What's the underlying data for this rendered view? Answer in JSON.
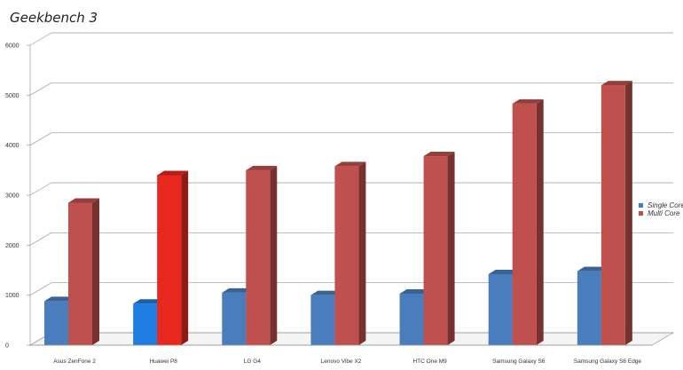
{
  "chart_data": {
    "type": "bar",
    "title": "Geekbench 3",
    "categories": [
      "Asus ZenFone 2",
      "Huawei P8",
      "LG G4",
      "Lenovo Vibe X2",
      "HTC One M9",
      "Samsung Galaxy S6",
      "Samsung Galaxy S6 Edge"
    ],
    "series": [
      {
        "name": "Single Core",
        "values": [
          880,
          830,
          1050,
          1000,
          1030,
          1420,
          1480
        ],
        "color": "#4a7dbd"
      },
      {
        "name": "Multi Core",
        "values": [
          2850,
          3400,
          3500,
          3580,
          3780,
          4830,
          5200
        ],
        "color": "#c0504d"
      }
    ],
    "highlight": {
      "category": "Huawei P8",
      "single_color": "#1f7ce0",
      "multi_color": "#e8281f"
    },
    "yticks": [
      0,
      1000,
      2000,
      3000,
      4000,
      5000,
      6000
    ],
    "yticks_text": [
      "0",
      "1000",
      "2000",
      "3000",
      "4000",
      "5000",
      "6000"
    ],
    "ylim": [
      0,
      6000
    ],
    "grid": true,
    "legend_position": "right",
    "xlabel": "",
    "ylabel": ""
  }
}
